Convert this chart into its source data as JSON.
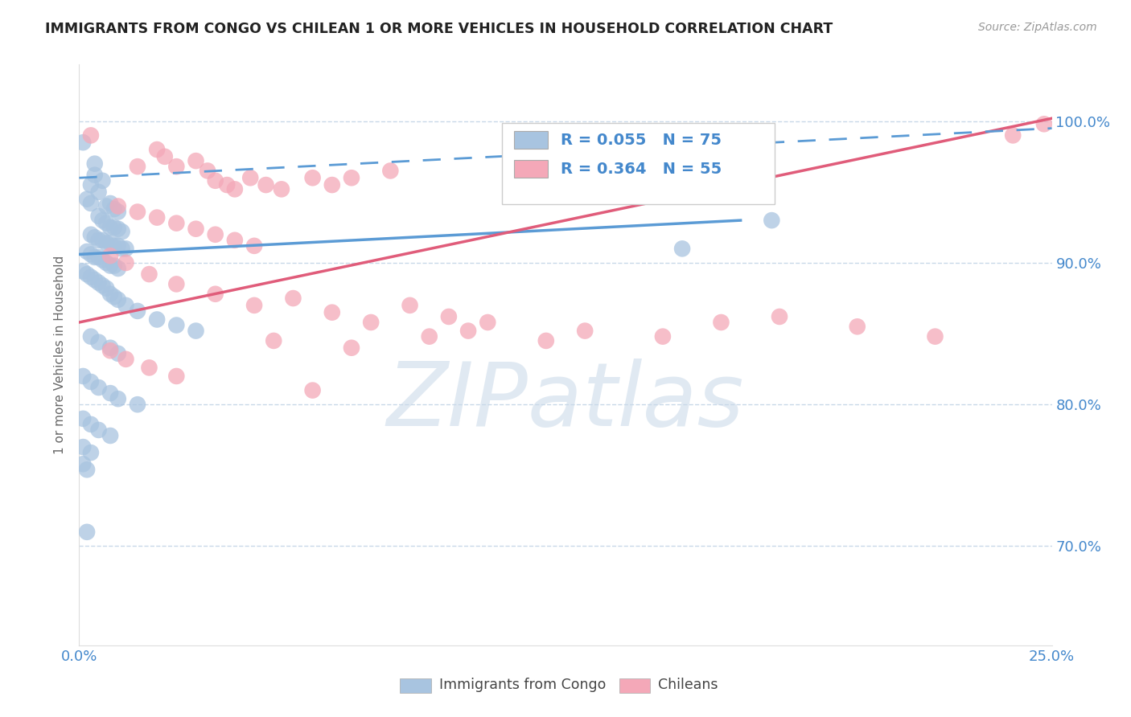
{
  "title": "IMMIGRANTS FROM CONGO VS CHILEAN 1 OR MORE VEHICLES IN HOUSEHOLD CORRELATION CHART",
  "source": "Source: ZipAtlas.com",
  "ylabel": "1 or more Vehicles in Household",
  "xlim": [
    0.0,
    0.25
  ],
  "ylim": [
    0.63,
    1.04
  ],
  "xticks": [
    0.0,
    0.05,
    0.1,
    0.15,
    0.2,
    0.25
  ],
  "xticklabels": [
    "0.0%",
    "",
    "",
    "",
    "",
    "25.0%"
  ],
  "yticks": [
    0.7,
    0.8,
    0.9,
    1.0
  ],
  "yticklabels": [
    "70.0%",
    "80.0%",
    "90.0%",
    "100.0%"
  ],
  "legend_labels": [
    "Immigrants from Congo",
    "Chileans"
  ],
  "legend_r_n": [
    {
      "R": "0.055",
      "N": "75"
    },
    {
      "R": "0.364",
      "N": "55"
    }
  ],
  "congo_color": "#a8c4e0",
  "chilean_color": "#f4a8b8",
  "congo_line_color": "#5b9bd5",
  "chilean_line_color": "#e05c7a",
  "congo_trend_line": {
    "x0": 0.0,
    "y0": 0.906,
    "x1": 0.17,
    "y1": 0.93
  },
  "chilean_trend_line": {
    "x0": 0.0,
    "y0": 0.858,
    "x1": 0.25,
    "y1": 1.002
  },
  "blue_dashed_line": {
    "x0": 0.0,
    "y0": 0.96,
    "x1": 0.25,
    "y1": 0.995
  },
  "watermark_text": "ZIPatlas",
  "watermark_color": "#c8d8e8",
  "background_color": "#ffffff",
  "grid_color": "#c8d8e8",
  "tick_color": "#4488cc",
  "congo_points": [
    [
      0.001,
      0.985
    ],
    [
      0.004,
      0.97
    ],
    [
      0.004,
      0.962
    ],
    [
      0.003,
      0.955
    ],
    [
      0.005,
      0.95
    ],
    [
      0.006,
      0.958
    ],
    [
      0.002,
      0.945
    ],
    [
      0.003,
      0.942
    ],
    [
      0.007,
      0.94
    ],
    [
      0.008,
      0.942
    ],
    [
      0.009,
      0.938
    ],
    [
      0.01,
      0.936
    ],
    [
      0.005,
      0.933
    ],
    [
      0.006,
      0.93
    ],
    [
      0.007,
      0.928
    ],
    [
      0.008,
      0.925
    ],
    [
      0.009,
      0.925
    ],
    [
      0.01,
      0.924
    ],
    [
      0.011,
      0.922
    ],
    [
      0.003,
      0.92
    ],
    [
      0.004,
      0.918
    ],
    [
      0.005,
      0.916
    ],
    [
      0.006,
      0.916
    ],
    [
      0.007,
      0.914
    ],
    [
      0.008,
      0.914
    ],
    [
      0.009,
      0.912
    ],
    [
      0.01,
      0.912
    ],
    [
      0.011,
      0.91
    ],
    [
      0.012,
      0.91
    ],
    [
      0.002,
      0.908
    ],
    [
      0.003,
      0.906
    ],
    [
      0.004,
      0.904
    ],
    [
      0.005,
      0.904
    ],
    [
      0.006,
      0.902
    ],
    [
      0.007,
      0.9
    ],
    [
      0.008,
      0.898
    ],
    [
      0.009,
      0.898
    ],
    [
      0.01,
      0.896
    ],
    [
      0.001,
      0.894
    ],
    [
      0.002,
      0.892
    ],
    [
      0.003,
      0.89
    ],
    [
      0.004,
      0.888
    ],
    [
      0.005,
      0.886
    ],
    [
      0.006,
      0.884
    ],
    [
      0.007,
      0.882
    ],
    [
      0.008,
      0.878
    ],
    [
      0.009,
      0.876
    ],
    [
      0.01,
      0.874
    ],
    [
      0.012,
      0.87
    ],
    [
      0.015,
      0.866
    ],
    [
      0.02,
      0.86
    ],
    [
      0.025,
      0.856
    ],
    [
      0.03,
      0.852
    ],
    [
      0.003,
      0.848
    ],
    [
      0.005,
      0.844
    ],
    [
      0.008,
      0.84
    ],
    [
      0.01,
      0.836
    ],
    [
      0.001,
      0.82
    ],
    [
      0.003,
      0.816
    ],
    [
      0.005,
      0.812
    ],
    [
      0.008,
      0.808
    ],
    [
      0.01,
      0.804
    ],
    [
      0.015,
      0.8
    ],
    [
      0.001,
      0.79
    ],
    [
      0.003,
      0.786
    ],
    [
      0.005,
      0.782
    ],
    [
      0.008,
      0.778
    ],
    [
      0.001,
      0.77
    ],
    [
      0.003,
      0.766
    ],
    [
      0.001,
      0.758
    ],
    [
      0.002,
      0.754
    ],
    [
      0.002,
      0.71
    ],
    [
      0.155,
      0.91
    ],
    [
      0.178,
      0.93
    ]
  ],
  "chilean_points": [
    [
      0.003,
      0.99
    ],
    [
      0.015,
      0.968
    ],
    [
      0.02,
      0.98
    ],
    [
      0.022,
      0.975
    ],
    [
      0.025,
      0.968
    ],
    [
      0.03,
      0.972
    ],
    [
      0.033,
      0.965
    ],
    [
      0.035,
      0.958
    ],
    [
      0.038,
      0.955
    ],
    [
      0.04,
      0.952
    ],
    [
      0.044,
      0.96
    ],
    [
      0.048,
      0.955
    ],
    [
      0.052,
      0.952
    ],
    [
      0.06,
      0.96
    ],
    [
      0.065,
      0.955
    ],
    [
      0.07,
      0.96
    ],
    [
      0.08,
      0.965
    ],
    [
      0.01,
      0.94
    ],
    [
      0.015,
      0.936
    ],
    [
      0.02,
      0.932
    ],
    [
      0.025,
      0.928
    ],
    [
      0.03,
      0.924
    ],
    [
      0.035,
      0.92
    ],
    [
      0.04,
      0.916
    ],
    [
      0.045,
      0.912
    ],
    [
      0.008,
      0.905
    ],
    [
      0.012,
      0.9
    ],
    [
      0.018,
      0.892
    ],
    [
      0.025,
      0.885
    ],
    [
      0.035,
      0.878
    ],
    [
      0.045,
      0.87
    ],
    [
      0.055,
      0.875
    ],
    [
      0.065,
      0.865
    ],
    [
      0.075,
      0.858
    ],
    [
      0.085,
      0.87
    ],
    [
      0.095,
      0.862
    ],
    [
      0.105,
      0.858
    ],
    [
      0.13,
      0.852
    ],
    [
      0.15,
      0.848
    ],
    [
      0.165,
      0.858
    ],
    [
      0.22,
      0.848
    ],
    [
      0.008,
      0.838
    ],
    [
      0.012,
      0.832
    ],
    [
      0.018,
      0.826
    ],
    [
      0.025,
      0.82
    ],
    [
      0.06,
      0.81
    ],
    [
      0.1,
      0.852
    ],
    [
      0.12,
      0.845
    ],
    [
      0.18,
      0.862
    ],
    [
      0.2,
      0.855
    ],
    [
      0.24,
      0.99
    ],
    [
      0.248,
      0.998
    ],
    [
      0.05,
      0.845
    ],
    [
      0.07,
      0.84
    ],
    [
      0.09,
      0.848
    ]
  ]
}
